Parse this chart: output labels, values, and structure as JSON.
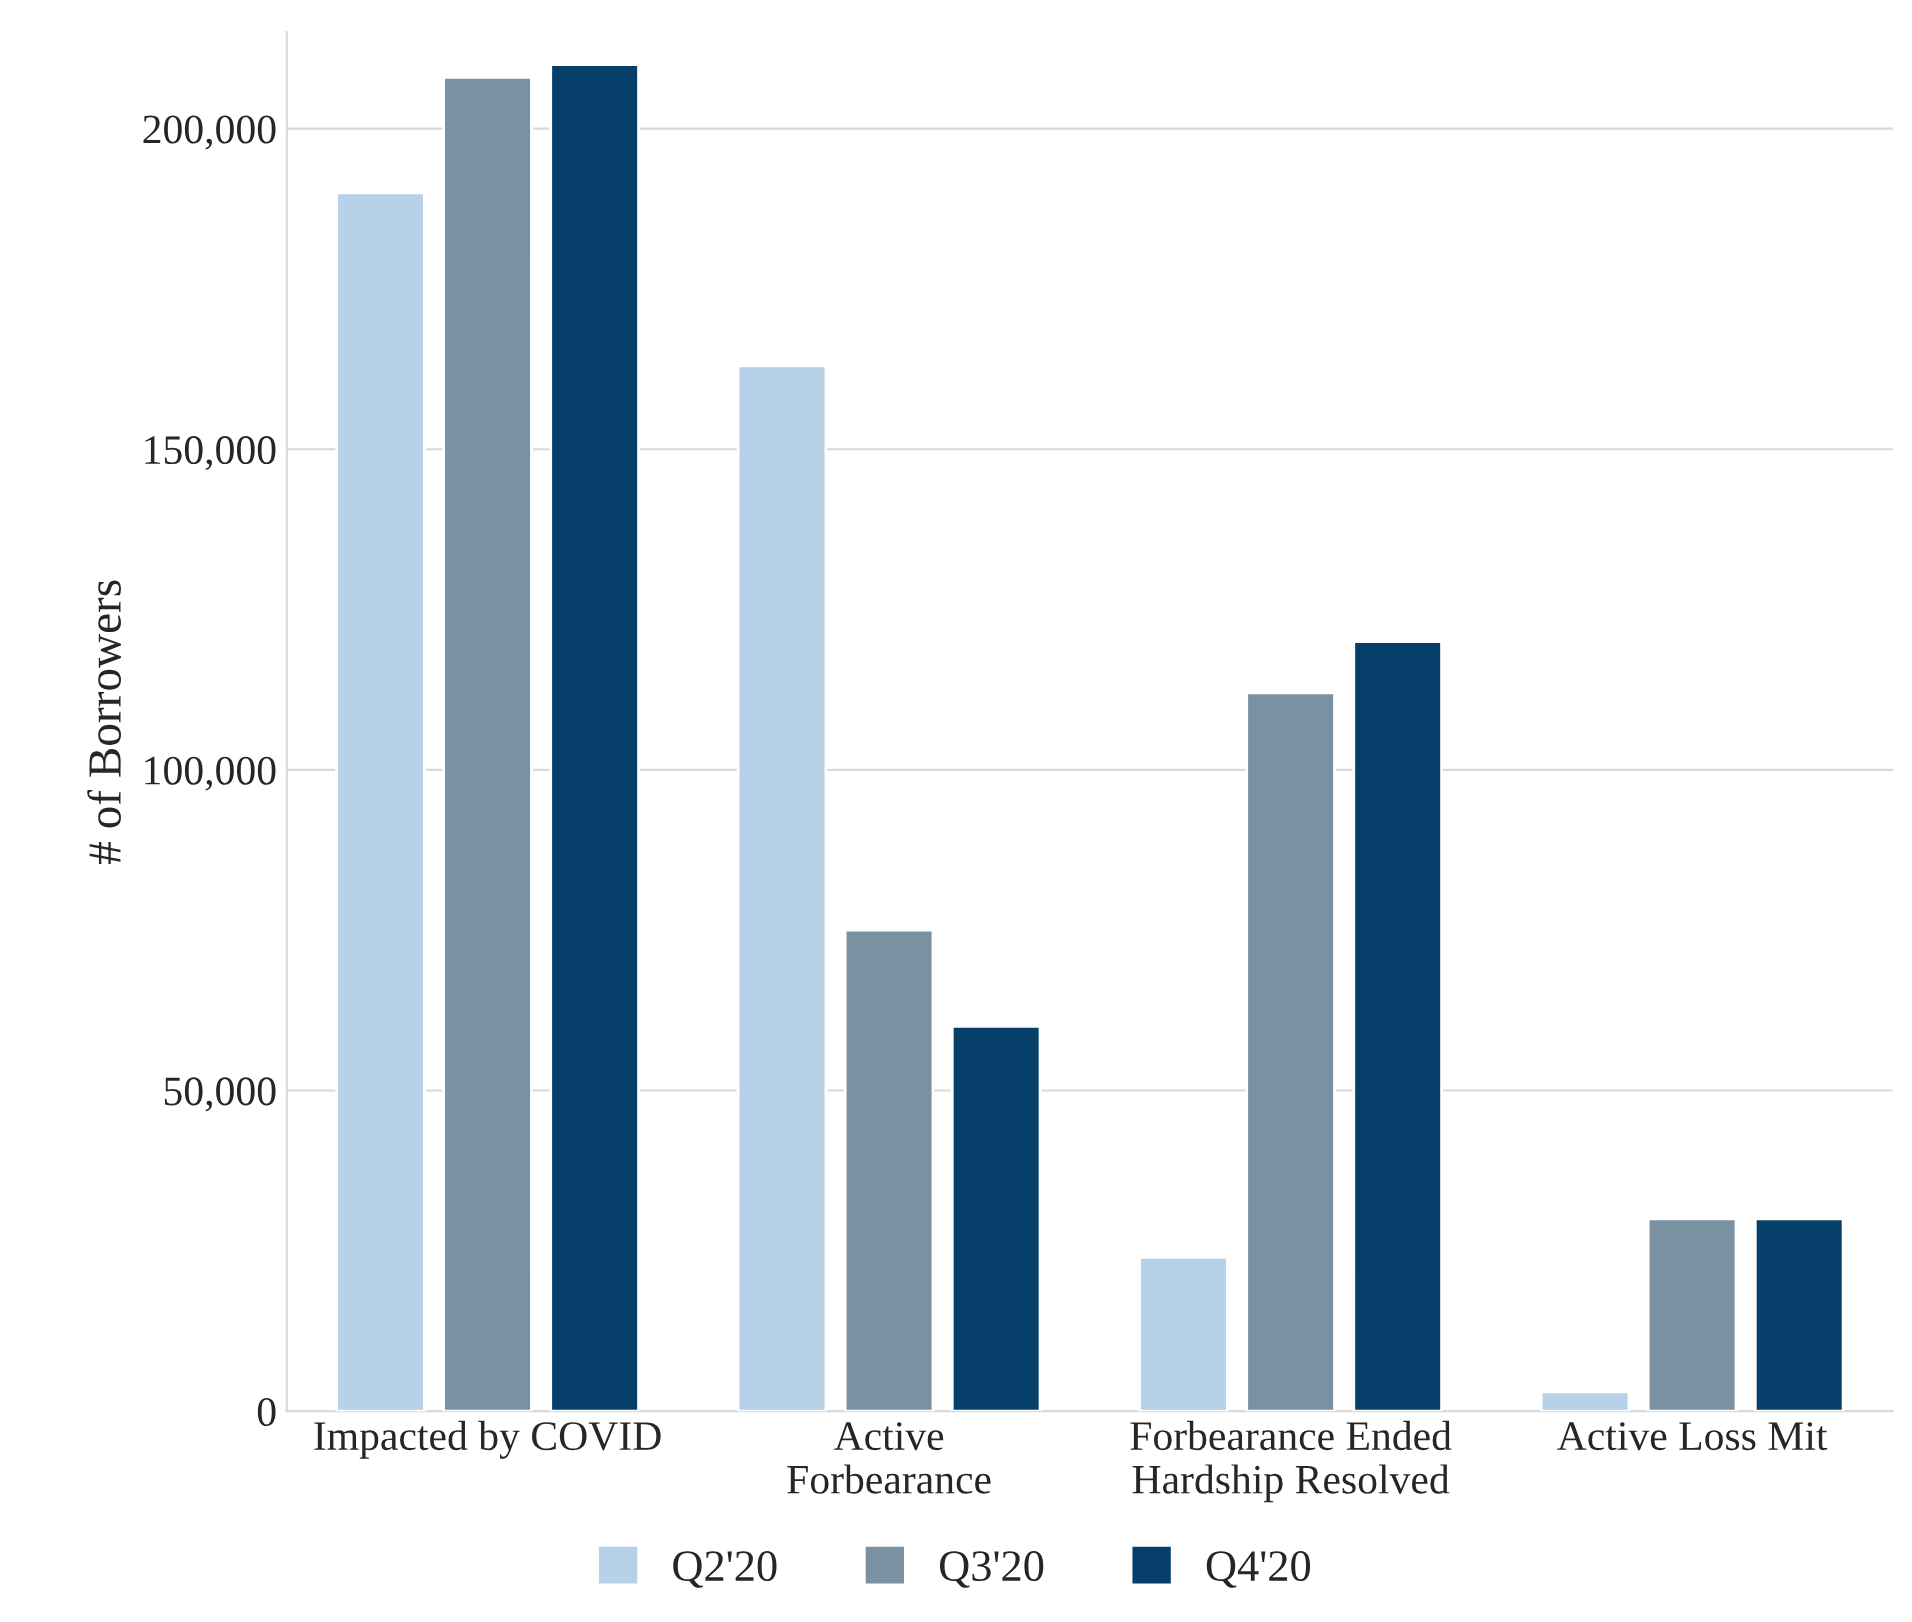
{
  "chart_data": {
    "type": "bar",
    "ylabel": "# of Borrowers",
    "categories": [
      "Impacted by COVID",
      "Active\nForbearance",
      "Forbearance Ended\nHardship Resolved",
      "Active Loss Mit"
    ],
    "series": [
      {
        "name": "Q2'20",
        "color": "#b7d1e8",
        "values": [
          190000,
          163000,
          24000,
          3000
        ]
      },
      {
        "name": "Q3'20",
        "color": "#7a91a1",
        "values": [
          208000,
          75000,
          112000,
          30000
        ]
      },
      {
        "name": "Q4'20",
        "color": "#053f6a",
        "values": [
          210000,
          60000,
          120000,
          30000
        ]
      }
    ],
    "ylim": [
      0,
      215000
    ],
    "yticks": [
      {
        "value": 0,
        "label": "0"
      },
      {
        "value": 50000,
        "label": "50,000"
      },
      {
        "value": 100000,
        "label": "100,000"
      },
      {
        "value": 150000,
        "label": "150,000"
      },
      {
        "value": 200000,
        "label": "200,000"
      }
    ],
    "grid": "y",
    "legend": "bottom"
  }
}
